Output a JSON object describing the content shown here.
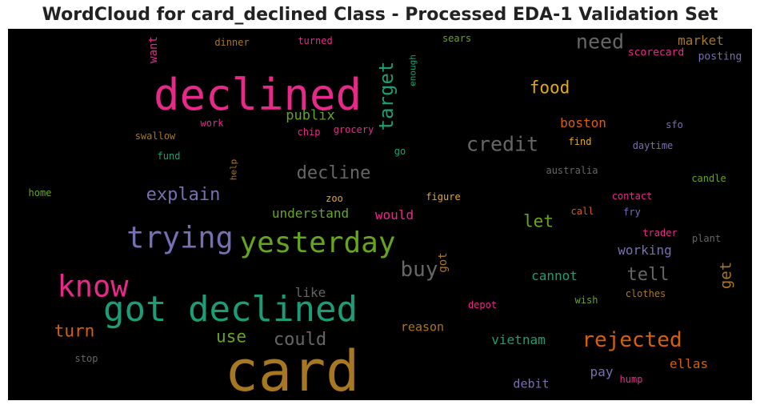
{
  "chart_data": {
    "type": "wordcloud",
    "title": "WordCloud for card_declined Class - Processed EDA-1 Validation Set",
    "words": [
      {
        "text": "card",
        "weight": 70,
        "color": "#a87722"
      },
      {
        "text": "declined",
        "weight": 54,
        "color": "#e7298a"
      },
      {
        "text": "got declined",
        "weight": 44,
        "color": "#1b9e77"
      },
      {
        "text": "yesterday",
        "weight": 36,
        "color": "#66a61e"
      },
      {
        "text": "trying",
        "weight": 37,
        "color": "#7570b3"
      },
      {
        "text": "know",
        "weight": 37,
        "color": "#e7298a"
      },
      {
        "text": "target",
        "weight": 24,
        "color": "#1b9e77",
        "vertical": true
      },
      {
        "text": "credit",
        "weight": 25,
        "color": "#666666"
      },
      {
        "text": "need",
        "weight": 25,
        "color": "#666666"
      },
      {
        "text": "rejected",
        "weight": 26,
        "color": "#d95f02"
      },
      {
        "text": "buy",
        "weight": 26,
        "color": "#666666"
      },
      {
        "text": "decline",
        "weight": 22,
        "color": "#666666"
      },
      {
        "text": "explain",
        "weight": 22,
        "color": "#7570b3"
      },
      {
        "text": "could",
        "weight": 22,
        "color": "#666666"
      },
      {
        "text": "tell",
        "weight": 22,
        "color": "#666666"
      },
      {
        "text": "turn",
        "weight": 21,
        "color": "#d95f02"
      },
      {
        "text": "food",
        "weight": 21,
        "color": "#e6ab02"
      },
      {
        "text": "let",
        "weight": 21,
        "color": "#66a61e"
      },
      {
        "text": "use",
        "weight": 21,
        "color": "#66a61e"
      },
      {
        "text": "get",
        "weight": 19,
        "color": "#a87722",
        "vertical": true
      },
      {
        "text": "publix",
        "weight": 17,
        "color": "#66a61e"
      },
      {
        "text": "understand",
        "weight": 16,
        "color": "#66a61e"
      },
      {
        "text": "would",
        "weight": 16,
        "color": "#e7298a"
      },
      {
        "text": "boston",
        "weight": 16,
        "color": "#d95f02"
      },
      {
        "text": "market",
        "weight": 16,
        "color": "#a87722"
      },
      {
        "text": "working",
        "weight": 16,
        "color": "#7570b3"
      },
      {
        "text": "cannot",
        "weight": 16,
        "color": "#1b9e77"
      },
      {
        "text": "like",
        "weight": 16,
        "color": "#666666"
      },
      {
        "text": "reason",
        "weight": 15,
        "color": "#a87722"
      },
      {
        "text": "vietnam",
        "weight": 16,
        "color": "#1b9e77"
      },
      {
        "text": "pay",
        "weight": 16,
        "color": "#7570b3"
      },
      {
        "text": "debit",
        "weight": 15,
        "color": "#7570b3"
      },
      {
        "text": "ellas",
        "weight": 16,
        "color": "#d95f02"
      },
      {
        "text": "want",
        "weight": 14,
        "color": "#e7298a",
        "vertical": true
      },
      {
        "text": "got",
        "weight": 14,
        "color": "#a87722",
        "vertical": true
      },
      {
        "text": "scorecard",
        "weight": 13,
        "color": "#e7298a"
      },
      {
        "text": "posting",
        "weight": 13,
        "color": "#7570b3"
      },
      {
        "text": "dinner",
        "weight": 12,
        "color": "#a87722"
      },
      {
        "text": "turned",
        "weight": 12,
        "color": "#e7298a"
      },
      {
        "text": "sears",
        "weight": 12,
        "color": "#66a61e"
      },
      {
        "text": "enough",
        "weight": 11,
        "color": "#1b9e77",
        "vertical": true
      },
      {
        "text": "work",
        "weight": 12,
        "color": "#e7298a"
      },
      {
        "text": "swallow",
        "weight": 12,
        "color": "#a87722"
      },
      {
        "text": "chip",
        "weight": 12,
        "color": "#e7298a"
      },
      {
        "text": "grocery",
        "weight": 12,
        "color": "#e7298a"
      },
      {
        "text": "sfo",
        "weight": 12,
        "color": "#7570b3"
      },
      {
        "text": "find",
        "weight": 12,
        "color": "#e6ab02"
      },
      {
        "text": "daytime",
        "weight": 12,
        "color": "#7570b3"
      },
      {
        "text": "fund",
        "weight": 12,
        "color": "#1b9e77"
      },
      {
        "text": "go",
        "weight": 12,
        "color": "#1b9e77"
      },
      {
        "text": "help",
        "weight": 11,
        "color": "#a87722",
        "vertical": true
      },
      {
        "text": "australia",
        "weight": 12,
        "color": "#666666"
      },
      {
        "text": "home",
        "weight": 12,
        "color": "#66a61e"
      },
      {
        "text": "candle",
        "weight": 12,
        "color": "#66a61e"
      },
      {
        "text": "zoo",
        "weight": 12,
        "color": "#e6ab02"
      },
      {
        "text": "figure",
        "weight": 12,
        "color": "#e6ab02"
      },
      {
        "text": "contact",
        "weight": 12,
        "color": "#e7298a"
      },
      {
        "text": "call",
        "weight": 12,
        "color": "#d95f02"
      },
      {
        "text": "fry",
        "weight": 12,
        "color": "#7570b3"
      },
      {
        "text": "trader",
        "weight": 12,
        "color": "#e7298a"
      },
      {
        "text": "plant",
        "weight": 12,
        "color": "#666666"
      },
      {
        "text": "depot",
        "weight": 12,
        "color": "#e7298a"
      },
      {
        "text": "wish",
        "weight": 12,
        "color": "#66a61e"
      },
      {
        "text": "clothes",
        "weight": 12,
        "color": "#a87722"
      },
      {
        "text": "stop",
        "weight": 12,
        "color": "#666666"
      },
      {
        "text": "hump",
        "weight": 12,
        "color": "#e7298a"
      }
    ]
  }
}
